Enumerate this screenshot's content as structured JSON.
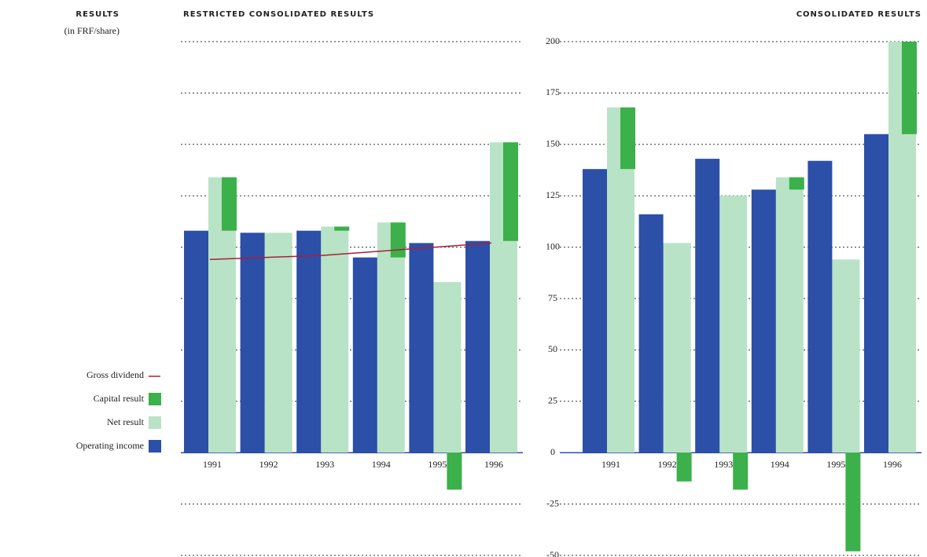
{
  "header": {
    "title": "RESULTS",
    "subtitle": "(in FRF/share)"
  },
  "chart_data": [
    {
      "type": "bar",
      "title": "RESTRICTED CONSOLIDATED RESULTS",
      "legend": "left",
      "categories": [
        "1991",
        "1992",
        "1993",
        "1994",
        "1995",
        "1996"
      ],
      "series": [
        {
          "name": "Gross dividend",
          "type": "line",
          "color": "#a8203a",
          "values": [
            94,
            95,
            96,
            98,
            100,
            102
          ]
        },
        {
          "name": "Capital result",
          "color": "#3cb04a",
          "values": [
            26,
            0,
            2,
            17,
            -18,
            48
          ]
        },
        {
          "name": "Net result",
          "color": "#b9e3c6",
          "values": [
            134,
            107,
            110,
            112,
            83,
            151
          ]
        },
        {
          "name": "Operating income",
          "color": "#2c4fa8",
          "values": [
            108,
            107,
            108,
            95,
            102,
            103
          ]
        }
      ],
      "ylim": [
        -50,
        200
      ],
      "yticks": [
        -50,
        -25,
        0,
        25,
        50,
        75,
        100,
        125,
        150,
        175,
        200
      ],
      "grid": true
    },
    {
      "type": "bar",
      "title": "CONSOLIDATED RESULTS",
      "categories": [
        "1991",
        "1992",
        "1993",
        "1994",
        "1995",
        "1996"
      ],
      "series": [
        {
          "name": "Capital result",
          "color": "#3cb04a",
          "values": [
            30,
            -14,
            -18,
            6,
            -48,
            45
          ]
        },
        {
          "name": "Net result",
          "color": "#b9e3c6",
          "values": [
            168,
            102,
            125,
            134,
            94,
            200
          ]
        },
        {
          "name": "Operating income",
          "color": "#2c4fa8",
          "values": [
            138,
            116,
            143,
            128,
            142,
            155
          ]
        }
      ],
      "ylim": [
        -50,
        200
      ],
      "yticks": [
        -50,
        -25,
        0,
        25,
        50,
        75,
        100,
        125,
        150,
        175,
        200
      ],
      "grid": true
    }
  ]
}
